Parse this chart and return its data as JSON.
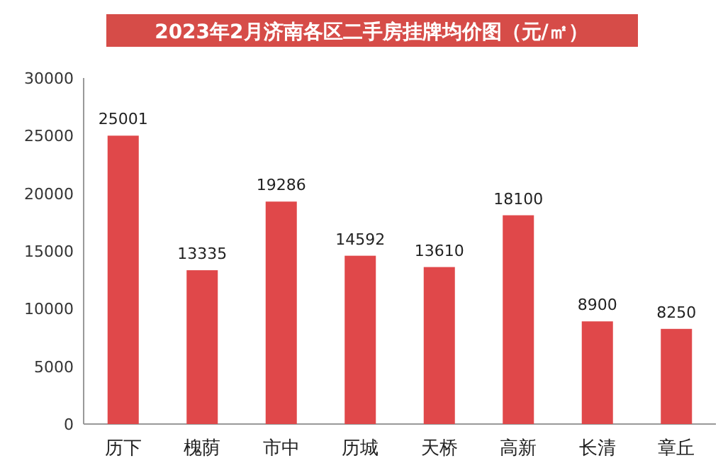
{
  "chart_data": {
    "type": "bar",
    "title": "2023年2月济南各区二手房挂牌均价图（元/㎡）",
    "categories": [
      "历下",
      "槐荫",
      "市中",
      "历城",
      "天桥",
      "高新",
      "长清",
      "章丘"
    ],
    "values": [
      25001,
      13335,
      19286,
      14592,
      13610,
      18100,
      8900,
      8250
    ],
    "color": "#e0484a",
    "ylim": [
      0,
      30000
    ],
    "yticks": [
      0,
      5000,
      10000,
      15000,
      20000,
      25000,
      30000
    ],
    "data_labels": true
  }
}
